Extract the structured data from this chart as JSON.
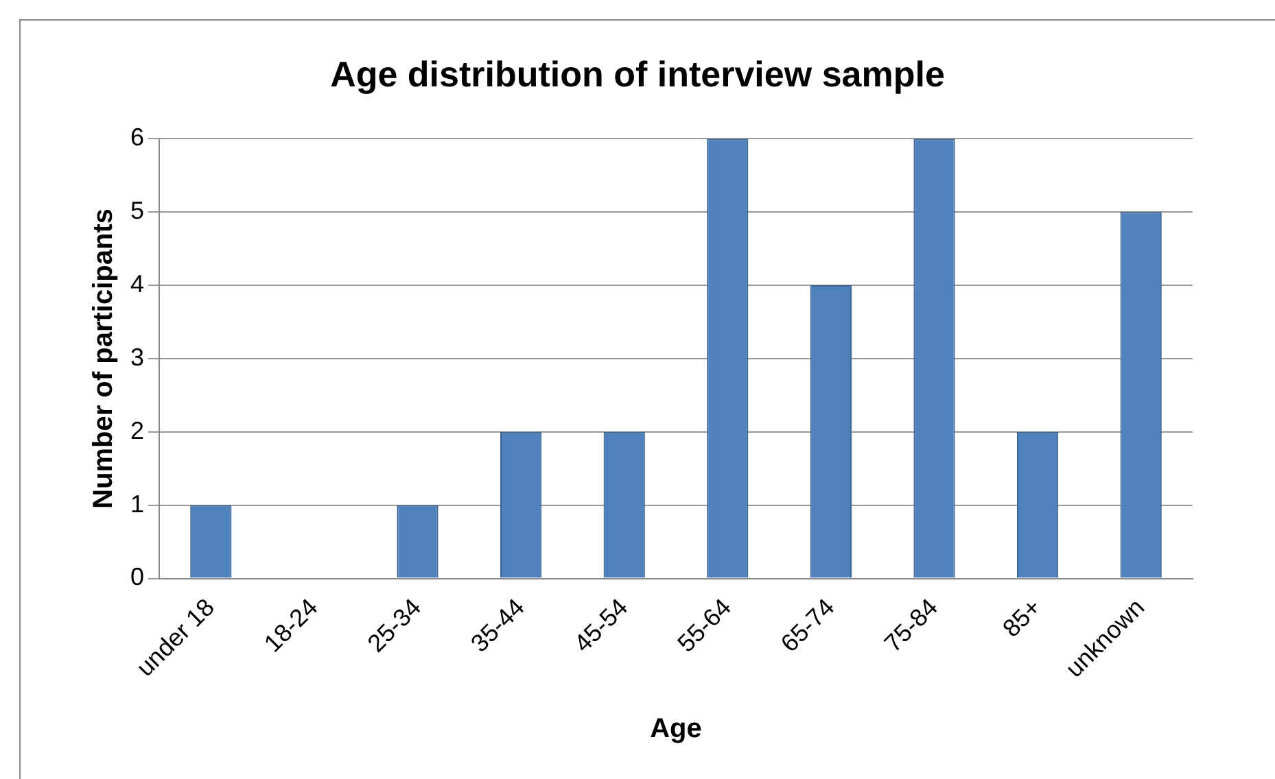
{
  "chart_data": {
    "type": "bar",
    "title": "Age distribution of interview sample",
    "xlabel": "Age",
    "ylabel": "Number of participants",
    "categories": [
      "under 18",
      "18-24",
      "25-34",
      "35-44",
      "45-54",
      "55-64",
      "65-74",
      "75-84",
      "85+",
      "unknown"
    ],
    "values": [
      1,
      0,
      1,
      2,
      2,
      6,
      4,
      6,
      2,
      5
    ],
    "color": "#4f81bd",
    "ylim": [
      0,
      6
    ],
    "yticks": [
      0,
      1,
      2,
      3,
      4,
      5,
      6
    ],
    "grid": "y",
    "legend": false
  }
}
